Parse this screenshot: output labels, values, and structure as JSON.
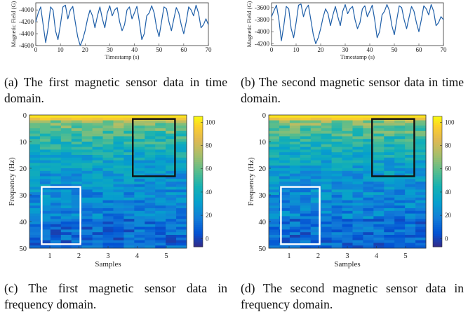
{
  "captions": {
    "a": "(a) The first magnetic sensor data in time domain.",
    "b": "(b) The second magnetic sensor data in time domain.",
    "c": "(c) The first magnetic sensor data in frequency domain.",
    "d": "(d) The second magnetic sensor data in frequency domain."
  },
  "chart_data": [
    {
      "id": "a",
      "type": "line",
      "title": "",
      "xlabel": "Timestamp (s)",
      "ylabel": "Magnetic Field (G)",
      "xlim": [
        0,
        70
      ],
      "ylim": [
        -4600,
        -3880
      ],
      "xticks": [
        0,
        10,
        20,
        30,
        40,
        50,
        60,
        70
      ],
      "yticks": [
        -4000,
        -4200,
        -4400,
        -4600
      ],
      "line_color": "#1f5fa8",
      "series": [
        {
          "x": [
            0,
            1,
            2,
            3,
            4,
            5,
            6,
            7,
            8,
            9,
            10,
            11,
            12,
            13,
            14,
            15,
            16,
            17,
            18,
            19,
            20,
            21,
            22,
            23,
            24,
            25,
            26,
            27,
            28,
            29,
            30,
            31,
            32,
            33,
            34,
            35,
            36,
            37,
            38,
            39,
            40,
            41,
            42,
            43,
            44,
            45,
            46,
            47,
            48,
            49,
            50,
            51,
            52,
            53,
            54,
            55,
            56,
            57,
            58,
            59,
            60,
            61,
            62,
            63,
            64,
            65,
            66,
            67,
            68,
            69,
            70
          ],
          "values": [
            -4200,
            -4050,
            -3950,
            -4250,
            -4550,
            -4300,
            -3950,
            -4000,
            -4350,
            -4500,
            -4250,
            -3950,
            -3920,
            -4150,
            -4000,
            -3940,
            -4200,
            -4450,
            -4600,
            -4500,
            -4350,
            -4150,
            -4000,
            -4100,
            -4300,
            -4100,
            -3950,
            -4150,
            -4300,
            -4050,
            -3930,
            -4100,
            -4000,
            -3960,
            -4200,
            -4350,
            -4250,
            -4000,
            -3950,
            -4150,
            -4050,
            -3940,
            -4200,
            -4500,
            -4400,
            -4100,
            -4050,
            -3930,
            -4050,
            -4300,
            -4450,
            -4200,
            -3950,
            -3980,
            -4200,
            -4350,
            -4150,
            -3960,
            -4050,
            -4250,
            -4400,
            -4200,
            -3950,
            -4000,
            -4100,
            -3920,
            -4050,
            -4300,
            -4250,
            -4150,
            -4250
          ]
        }
      ]
    },
    {
      "id": "b",
      "type": "line",
      "title": "",
      "xlabel": "Timestamp (s)",
      "ylabel": "Magnetic Field (G)",
      "xlim": [
        0,
        70
      ],
      "ylim": [
        -4230,
        -3520
      ],
      "xticks": [
        0,
        10,
        20,
        30,
        40,
        50,
        60,
        70
      ],
      "yticks": [
        -3600,
        -3800,
        -4000,
        -4200
      ],
      "line_color": "#1f5fa8",
      "series": [
        {
          "x": [
            0,
            1,
            2,
            3,
            4,
            5,
            6,
            7,
            8,
            9,
            10,
            11,
            12,
            13,
            14,
            15,
            16,
            17,
            18,
            19,
            20,
            21,
            22,
            23,
            24,
            25,
            26,
            27,
            28,
            29,
            30,
            31,
            32,
            33,
            34,
            35,
            36,
            37,
            38,
            39,
            40,
            41,
            42,
            43,
            44,
            45,
            46,
            47,
            48,
            49,
            50,
            51,
            52,
            53,
            54,
            55,
            56,
            57,
            58,
            59,
            60,
            61,
            62,
            63,
            64,
            65,
            66,
            67,
            68,
            69,
            70
          ],
          "values": [
            -3750,
            -3650,
            -3560,
            -3800,
            -4150,
            -3900,
            -3580,
            -3620,
            -3950,
            -4100,
            -3850,
            -3560,
            -3540,
            -3750,
            -3620,
            -3560,
            -3800,
            -4050,
            -4200,
            -4100,
            -3950,
            -3760,
            -3620,
            -3700,
            -3900,
            -3720,
            -3580,
            -3750,
            -3900,
            -3660,
            -3550,
            -3700,
            -3620,
            -3580,
            -3800,
            -3950,
            -3850,
            -3620,
            -3570,
            -3750,
            -3660,
            -3560,
            -3800,
            -4100,
            -4000,
            -3720,
            -3660,
            -3550,
            -3650,
            -3900,
            -4050,
            -3800,
            -3570,
            -3600,
            -3800,
            -3950,
            -3760,
            -3580,
            -3660,
            -3850,
            -4000,
            -3800,
            -3570,
            -3620,
            -3720,
            -3550,
            -3660,
            -3900,
            -3850,
            -3750,
            -3800
          ]
        }
      ]
    },
    {
      "id": "c",
      "type": "heatmap",
      "title": "",
      "xlabel": "Samples",
      "ylabel": "Frequency (Hz)",
      "xticks": [
        1,
        2,
        3,
        4,
        5
      ],
      "yticks": [
        0,
        10,
        20,
        30,
        40,
        50
      ],
      "colorbar_ticks": [
        0,
        20,
        40,
        60,
        80,
        100
      ],
      "clim": [
        -7,
        105
      ],
      "grid": false,
      "legend": "colorbar right",
      "seed": 7,
      "highlight_boxes": [
        {
          "color": "#ffffff",
          "x_range": [
            0.72,
            2.05
          ],
          "freq_range": [
            27,
            48.5
          ]
        },
        {
          "color": "#111111",
          "x_range": [
            3.85,
            5.3
          ],
          "freq_range": [
            1.5,
            23
          ]
        }
      ]
    },
    {
      "id": "d",
      "type": "heatmap",
      "title": "",
      "xlabel": "Samples",
      "ylabel": "Frequency (Hz)",
      "xticks": [
        1,
        2,
        3,
        4,
        5
      ],
      "yticks": [
        0,
        10,
        20,
        30,
        40,
        50
      ],
      "colorbar_ticks": [
        0,
        20,
        40,
        60,
        80,
        100
      ],
      "clim": [
        -7,
        105
      ],
      "grid": false,
      "legend": "colorbar right",
      "seed": 19,
      "highlight_boxes": [
        {
          "color": "#ffffff",
          "x_range": [
            0.72,
            2.05
          ],
          "freq_range": [
            27,
            48.5
          ]
        },
        {
          "color": "#111111",
          "x_range": [
            3.85,
            5.3
          ],
          "freq_range": [
            1.5,
            23
          ]
        }
      ]
    }
  ]
}
